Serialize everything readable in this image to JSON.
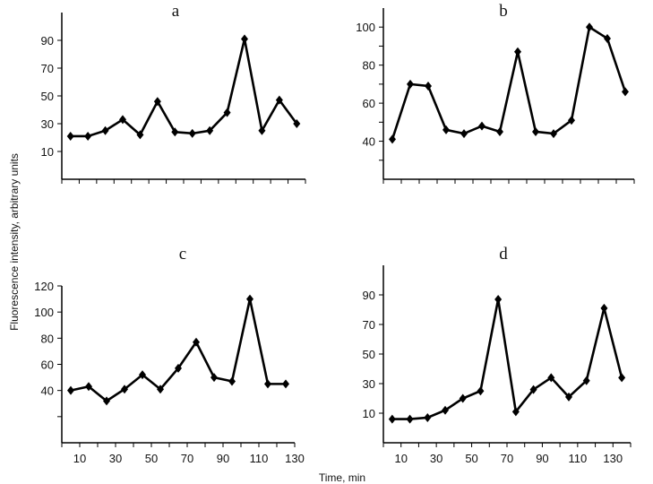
{
  "ylabel": "Fluorescence intensity, arbitrary units",
  "xlabel": "Time, min",
  "colors": {
    "line": "#000000",
    "axis": "#000000"
  },
  "chart_data": [
    {
      "type": "line",
      "title": "a",
      "x": [
        5,
        15,
        25,
        35,
        45,
        55,
        65,
        75,
        85,
        95,
        105,
        115,
        125,
        135
      ],
      "values": [
        21,
        21,
        25,
        33,
        22,
        46,
        24,
        23,
        25,
        38,
        91,
        25,
        47,
        30
      ],
      "xlim": [
        0,
        140
      ],
      "ylim": [
        -10,
        110
      ],
      "yticks": [
        10,
        30,
        50,
        70,
        90
      ],
      "yticks_minor": [],
      "xticks": [],
      "marker": "diamond",
      "grid": false
    },
    {
      "type": "line",
      "title": "b",
      "x": [
        5,
        15,
        25,
        35,
        45,
        55,
        65,
        75,
        85,
        95,
        105,
        115,
        125,
        135
      ],
      "values": [
        41,
        70,
        69,
        46,
        44,
        48,
        45,
        87,
        45,
        44,
        51,
        100,
        94,
        66
      ],
      "xlim": [
        0,
        140
      ],
      "ylim": [
        20,
        110
      ],
      "yticks": [
        40,
        60,
        80,
        100
      ],
      "yticks_minor": [
        30,
        50,
        70,
        90
      ],
      "xticks": [],
      "marker": "diamond",
      "grid": false
    },
    {
      "type": "line",
      "title": "c",
      "x": [
        5,
        15,
        25,
        35,
        45,
        55,
        65,
        75,
        85,
        95,
        105,
        115,
        125
      ],
      "values": [
        40,
        43,
        32,
        41,
        52,
        41,
        57,
        77,
        50,
        47,
        110,
        45,
        45
      ],
      "xlim": [
        0,
        130
      ],
      "ylim": [
        0,
        120
      ],
      "yticks": [
        40,
        60,
        80,
        100,
        120
      ],
      "yticks_minor": [
        20
      ],
      "xticks": [
        10,
        30,
        50,
        70,
        90,
        110,
        130
      ],
      "marker": "diamond",
      "grid": false
    },
    {
      "type": "line",
      "title": "d",
      "x": [
        5,
        15,
        25,
        35,
        45,
        55,
        65,
        75,
        85,
        95,
        105,
        115,
        125,
        135
      ],
      "values": [
        6,
        6,
        7,
        12,
        20,
        25,
        87,
        11,
        26,
        34,
        21,
        32,
        81,
        34
      ],
      "xlim": [
        0,
        140
      ],
      "ylim": [
        -10,
        110
      ],
      "yticks": [
        10,
        30,
        50,
        70,
        90
      ],
      "yticks_minor": [],
      "xticks": [
        10,
        30,
        50,
        70,
        90,
        110,
        130
      ],
      "marker": "diamond",
      "grid": false
    }
  ]
}
